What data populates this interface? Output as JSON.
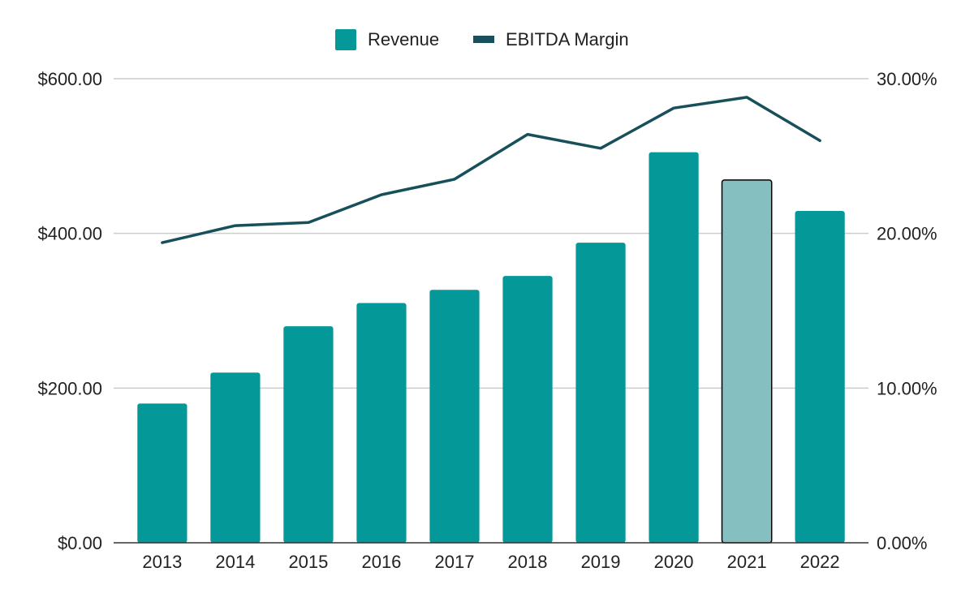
{
  "chart_data": {
    "type": "bar",
    "categories": [
      "2013",
      "2014",
      "2015",
      "2016",
      "2017",
      "2018",
      "2019",
      "2020",
      "2021",
      "2022"
    ],
    "series": [
      {
        "name": "Revenue",
        "chart_type": "bar",
        "axis": "left",
        "values": [
          180,
          220,
          280,
          310,
          327,
          345,
          388,
          505,
          469,
          429
        ],
        "color": "#049899",
        "highlight_index": 8,
        "highlight_color": "#85bfc0",
        "highlight_stroke": "#000000"
      },
      {
        "name": "EBITDA Margin",
        "chart_type": "line",
        "axis": "right",
        "values": [
          19.4,
          20.5,
          20.7,
          22.5,
          23.5,
          26.4,
          25.5,
          28.1,
          28.8,
          26.0
        ],
        "color": "#17505a"
      }
    ],
    "y_left": {
      "min": 0,
      "max": 600,
      "ticks": [
        0,
        200,
        400,
        600
      ],
      "tick_labels": [
        "$0.00",
        "$200.00",
        "$400.00",
        "$600.00"
      ]
    },
    "y_right": {
      "min": 0,
      "max": 30,
      "ticks": [
        0,
        10,
        20,
        30
      ],
      "tick_labels": [
        "0.00%",
        "10.00%",
        "20.00%",
        "30.00%"
      ]
    },
    "title": "",
    "xlabel": "",
    "ylabel": "",
    "grid": true,
    "legend": "top-center",
    "gridline_color": "#cccccc",
    "axis_line_color": "#333333"
  }
}
